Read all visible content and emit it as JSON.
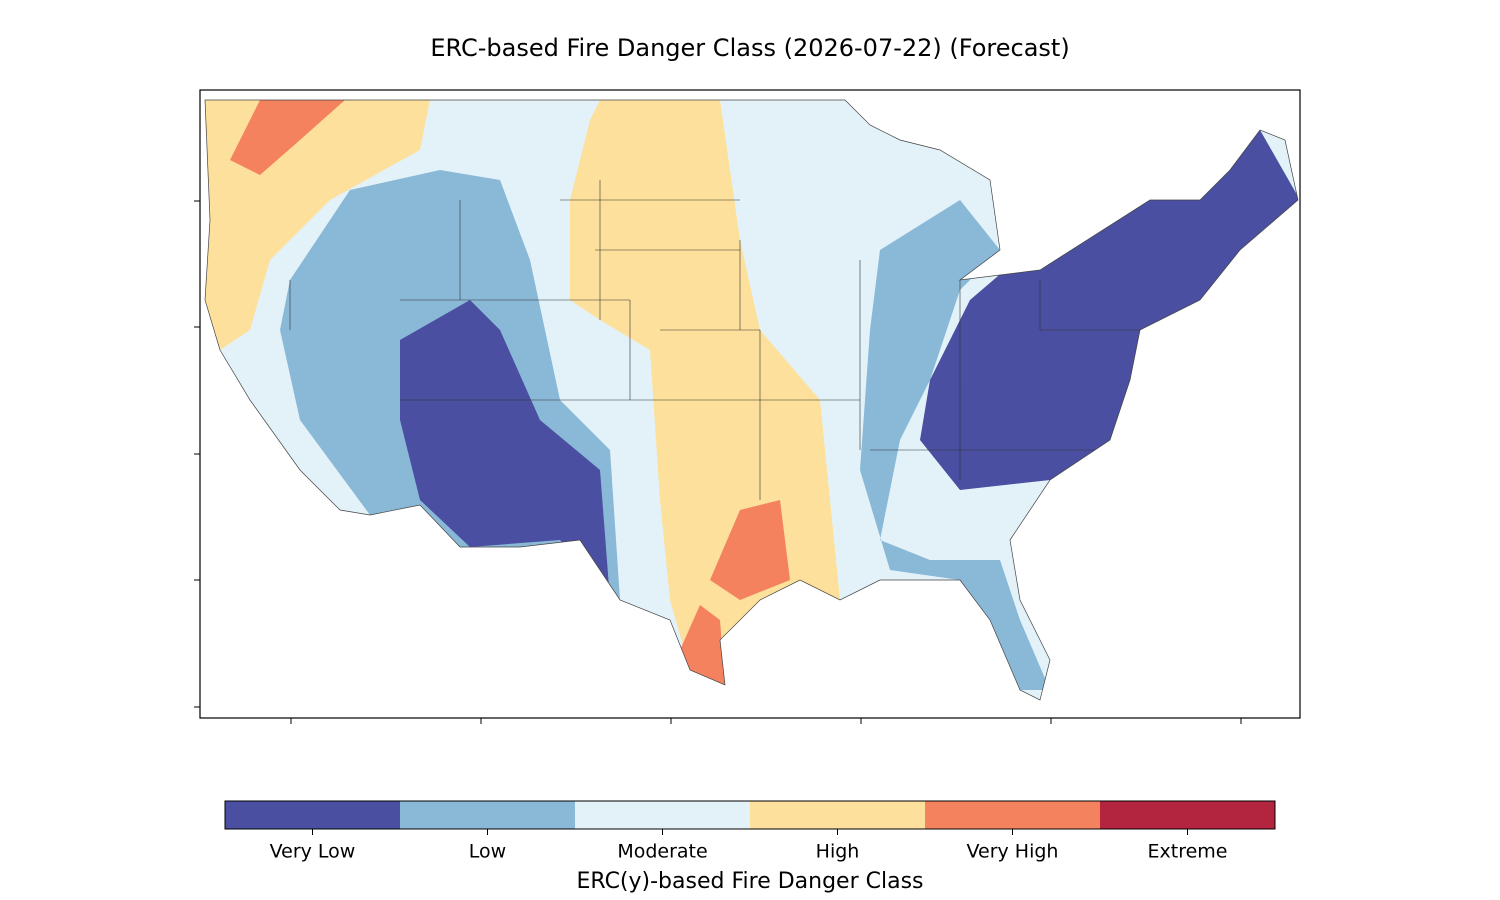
{
  "title": "ERC-based Fire Danger Class (2026-07-22) (Forecast)",
  "colorbar": {
    "label": "ERC(y)-based Fire Danger Class",
    "classes": [
      {
        "name": "Very Low",
        "color": "#4a4fa2"
      },
      {
        "name": "Low",
        "color": "#8ab8d7"
      },
      {
        "name": "Moderate",
        "color": "#e3f2f8"
      },
      {
        "name": "High",
        "color": "#fde09b"
      },
      {
        "name": "Very High",
        "color": "#f4825e"
      },
      {
        "name": "Extreme",
        "color": "#b3253f"
      }
    ]
  }
}
